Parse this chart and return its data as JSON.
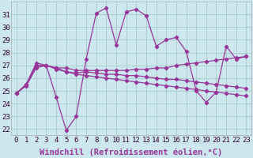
{
  "xlabel": "Windchill (Refroidissement éolien,°C)",
  "background_color": "#cce8ee",
  "grid_color": "#aacccc",
  "line_color": "#993399",
  "x_hours": [
    0,
    1,
    2,
    3,
    4,
    5,
    6,
    7,
    8,
    9,
    10,
    11,
    12,
    13,
    14,
    15,
    16,
    17,
    18,
    19,
    20,
    21,
    22,
    23
  ],
  "series1": [
    24.8,
    25.5,
    27.2,
    27.0,
    24.5,
    21.9,
    23.0,
    27.5,
    31.1,
    31.5,
    28.6,
    31.2,
    31.4,
    30.9,
    28.5,
    29.0,
    29.2,
    28.1,
    25.0,
    24.1,
    24.9,
    28.5,
    27.5,
    27.7
  ],
  "series2": [
    24.8,
    25.5,
    27.0,
    27.0,
    26.8,
    26.5,
    26.3,
    26.2,
    26.1,
    26.0,
    25.9,
    25.8,
    25.7,
    25.6,
    25.5,
    25.4,
    25.3,
    25.2,
    25.1,
    25.0,
    24.9,
    24.8,
    24.7,
    24.6
  ],
  "series3": [
    24.8,
    25.5,
    27.0,
    27.0,
    26.8,
    26.8,
    26.6,
    26.6,
    26.6,
    26.6,
    26.6,
    26.6,
    26.7,
    26.7,
    26.8,
    26.8,
    27.0,
    27.1,
    27.2,
    27.3,
    27.4,
    27.5,
    27.6,
    27.7
  ],
  "series4": [
    24.8,
    25.4,
    26.8,
    27.0,
    26.7,
    26.5,
    26.4,
    26.5,
    26.4,
    26.3,
    26.3,
    26.2,
    26.2,
    26.1,
    26.0,
    25.9,
    25.9,
    25.8,
    25.7,
    25.6,
    25.5,
    25.4,
    25.3,
    25.2
  ],
  "yticks": [
    22,
    23,
    24,
    25,
    26,
    27,
    28,
    29,
    30,
    31
  ],
  "ylim_min": 21.5,
  "ylim_max": 32.0,
  "tick_fontsize": 6.5,
  "label_fontsize": 7.5
}
